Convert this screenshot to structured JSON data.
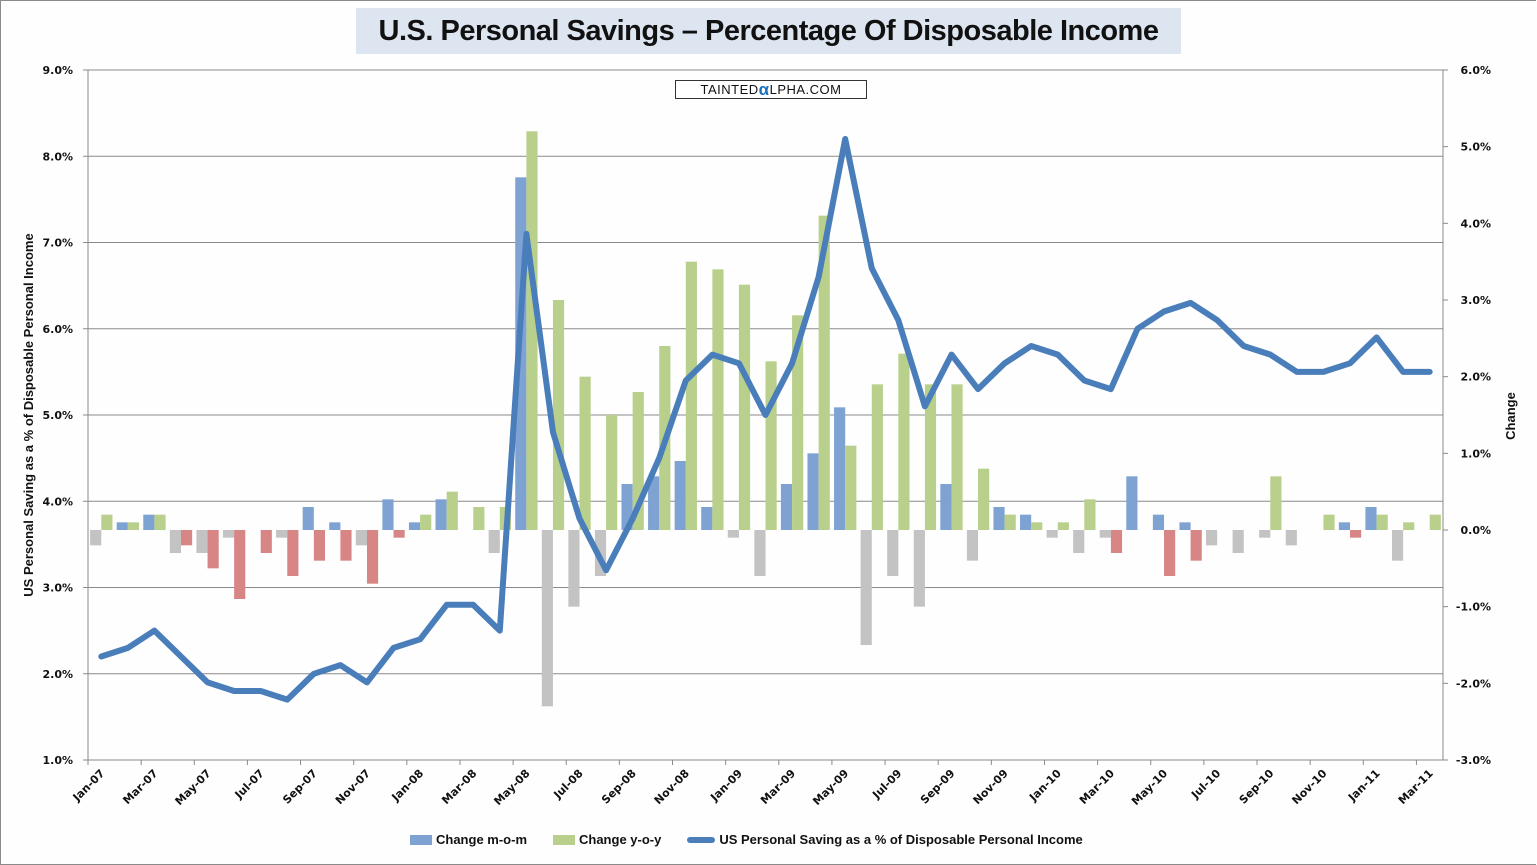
{
  "colors": {
    "mom_pos": "#7ea3d2",
    "mom_neg": "#c3c3c3",
    "yoy_pos": "#b9cf8c",
    "yoy_neg": "#d88585",
    "line": "#4a7ebb",
    "grid": "#8a8a8a",
    "title_bg": "#dde5f1"
  },
  "logo": {
    "text_before": "TAINTED",
    "alpha": "α",
    "text_after": "LPHA.COM"
  },
  "chart_data": {
    "type": "bar+line",
    "title": "U.S. Personal Savings – Percentage Of Disposable Income",
    "ylabel_left": "US Personal Saving as a % of Disposable Personal Income",
    "ylabel_right": "Change",
    "ylim_left": [
      1.0,
      9.0
    ],
    "ylim_right": [
      -3.0,
      6.0
    ],
    "yticks_left": [
      "1.0%",
      "2.0%",
      "3.0%",
      "4.0%",
      "5.0%",
      "6.0%",
      "7.0%",
      "8.0%",
      "9.0%"
    ],
    "yticks_right": [
      "-3.0%",
      "-2.0%",
      "-1.0%",
      "0.0%",
      "1.0%",
      "2.0%",
      "3.0%",
      "4.0%",
      "5.0%",
      "6.0%"
    ],
    "grid": true,
    "legend_position": "bottom",
    "categories": [
      "Jan-07",
      "Feb-07",
      "Mar-07",
      "Apr-07",
      "May-07",
      "Jun-07",
      "Jul-07",
      "Aug-07",
      "Sep-07",
      "Oct-07",
      "Nov-07",
      "Dec-07",
      "Jan-08",
      "Feb-08",
      "Mar-08",
      "Apr-08",
      "May-08",
      "Jun-08",
      "Jul-08",
      "Aug-08",
      "Sep-08",
      "Oct-08",
      "Nov-08",
      "Dec-08",
      "Jan-09",
      "Feb-09",
      "Mar-09",
      "Apr-09",
      "May-09",
      "Jun-09",
      "Jul-09",
      "Aug-09",
      "Sep-09",
      "Oct-09",
      "Nov-09",
      "Dec-09",
      "Jan-10",
      "Feb-10",
      "Mar-10",
      "Apr-10",
      "May-10",
      "Jun-10",
      "Jul-10",
      "Aug-10",
      "Sep-10",
      "Oct-10",
      "Nov-10",
      "Dec-10",
      "Jan-11",
      "Feb-11",
      "Mar-11"
    ],
    "xtick_labels": [
      "Jan-07",
      "Mar-07",
      "May-07",
      "Jul-07",
      "Sep-07",
      "Nov-07",
      "Jan-08",
      "Mar-08",
      "May-08",
      "Jul-08",
      "Sep-08",
      "Nov-08",
      "Jan-09",
      "Mar-09",
      "May-09",
      "Jul-09",
      "Sep-09",
      "Nov-09",
      "Jan-10",
      "Mar-10",
      "May-10",
      "Jul-10",
      "Sep-10",
      "Nov-10",
      "Jan-11",
      "Mar-11"
    ],
    "series": [
      {
        "name": "Change m-o-m",
        "type": "bar",
        "axis": "right",
        "values": [
          -0.2,
          0.1,
          0.2,
          -0.3,
          -0.3,
          -0.1,
          0.0,
          -0.1,
          0.3,
          0.1,
          -0.2,
          0.4,
          0.1,
          0.4,
          0.0,
          -0.3,
          4.6,
          -2.3,
          -1.0,
          -0.6,
          0.6,
          0.7,
          0.9,
          0.3,
          -0.1,
          -0.6,
          0.6,
          1.0,
          1.6,
          -1.5,
          -0.6,
          -1.0,
          0.6,
          -0.4,
          0.3,
          0.2,
          -0.1,
          -0.3,
          -0.1,
          0.7,
          0.2,
          0.1,
          -0.2,
          -0.3,
          -0.1,
          -0.2,
          0.0,
          0.1,
          0.3,
          -0.4,
          0.0
        ]
      },
      {
        "name": "Change y-o-y",
        "type": "bar",
        "axis": "right",
        "values": [
          0.2,
          0.1,
          0.2,
          -0.2,
          -0.5,
          -0.9,
          -0.3,
          -0.6,
          -0.4,
          -0.4,
          -0.7,
          -0.1,
          0.2,
          0.5,
          0.3,
          0.3,
          5.2,
          3.0,
          2.0,
          1.5,
          1.8,
          2.4,
          3.5,
          3.4,
          3.2,
          2.2,
          2.8,
          4.1,
          1.1,
          1.9,
          2.3,
          1.9,
          1.9,
          0.8,
          0.2,
          0.1,
          0.1,
          0.4,
          -0.3,
          0.0,
          -0.6,
          -0.4,
          0.0,
          0.0,
          0.7,
          0.0,
          0.2,
          -0.1,
          0.2,
          0.1,
          0.2
        ]
      },
      {
        "name": "US Personal Saving as a % of Disposable Personal Income",
        "type": "line",
        "axis": "left",
        "values": [
          2.2,
          2.3,
          2.5,
          2.2,
          1.9,
          1.8,
          1.8,
          1.7,
          2.0,
          2.1,
          1.9,
          2.3,
          2.4,
          2.8,
          2.8,
          2.5,
          7.1,
          4.8,
          3.8,
          3.2,
          3.8,
          4.5,
          5.4,
          5.7,
          5.6,
          5.0,
          5.6,
          6.6,
          8.2,
          6.7,
          6.1,
          5.1,
          5.7,
          5.3,
          5.6,
          5.8,
          5.7,
          5.4,
          5.3,
          6.0,
          6.2,
          6.3,
          6.1,
          5.8,
          5.7,
          5.5,
          5.5,
          5.6,
          5.9,
          5.5,
          5.5
        ]
      }
    ]
  }
}
